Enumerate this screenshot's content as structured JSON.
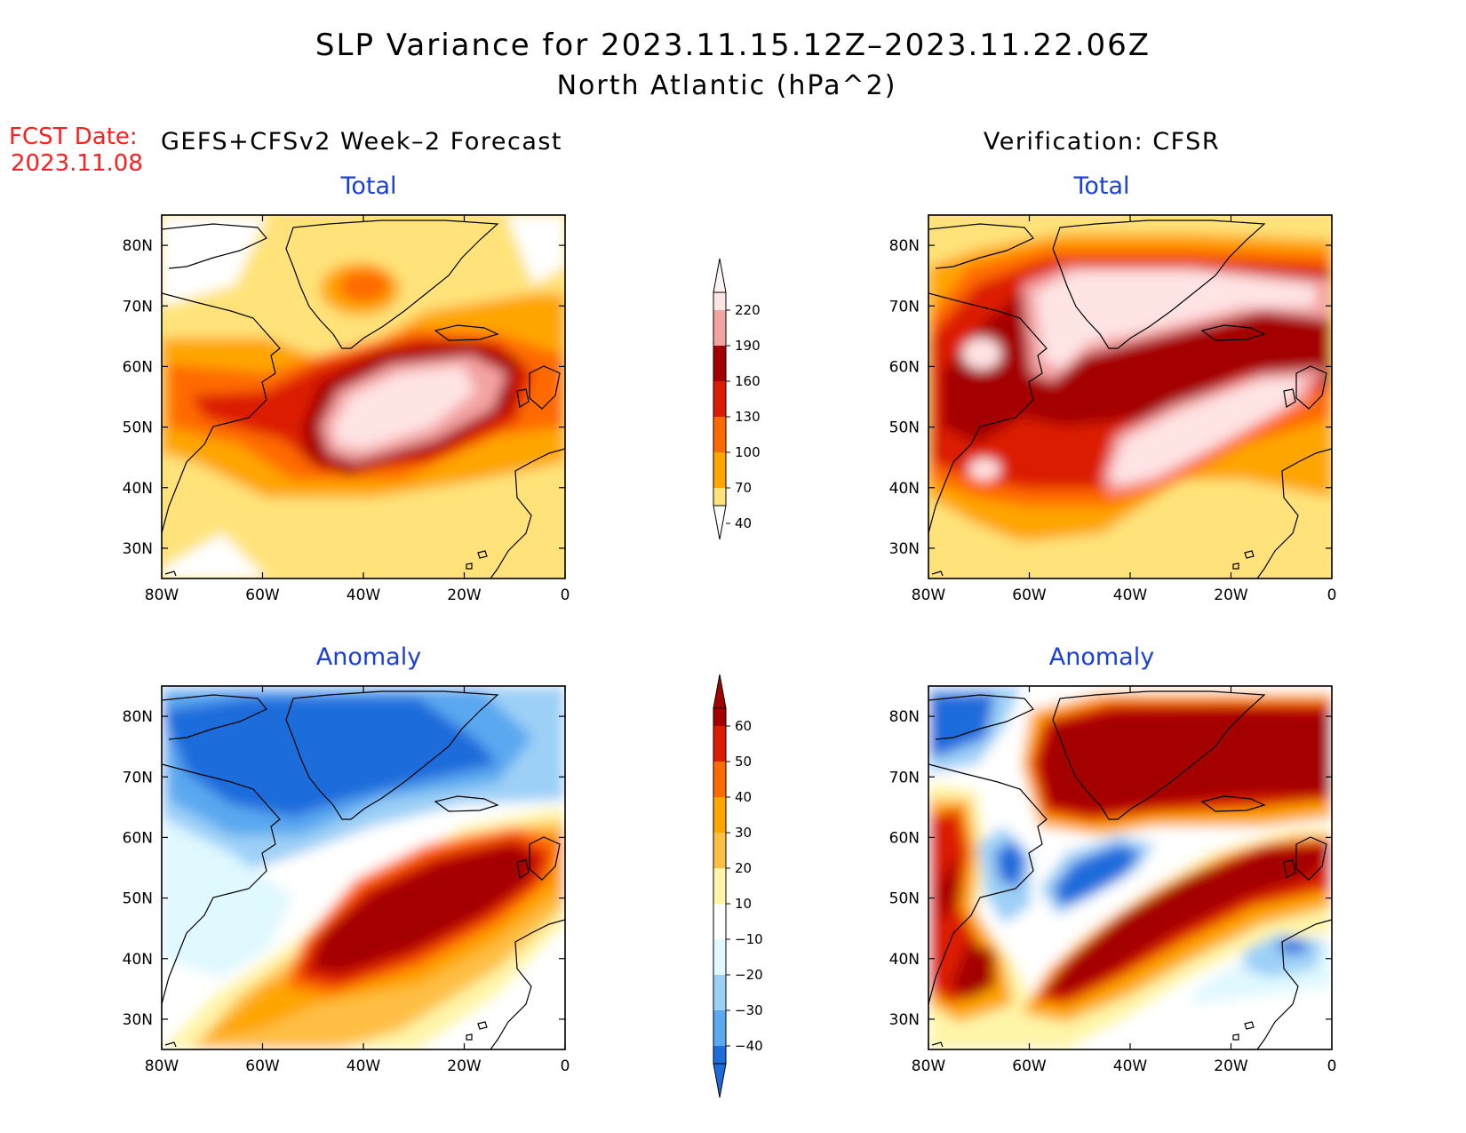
{
  "title": {
    "line1": "SLP Variance for 2023.11.15.12Z–2023.11.22.06Z",
    "line2": "North Atlantic (hPa^2)"
  },
  "fcst": {
    "label": "FCST Date:",
    "date": "2023.11.08"
  },
  "columns": {
    "left": "GEFS+CFSv2 Week–2 Forecast",
    "right": "Verification: CFSR"
  },
  "panels": [
    {
      "id": "forecast-total",
      "label": "Total",
      "field": "total"
    },
    {
      "id": "verification-total",
      "label": "Total",
      "field": "total"
    },
    {
      "id": "forecast-anomaly",
      "label": "Anomaly",
      "field": "anomaly"
    },
    {
      "id": "verification-anomaly",
      "label": "Anomaly",
      "field": "anomaly"
    }
  ],
  "axes": {
    "lon_ticks": [
      "80W",
      "60W",
      "40W",
      "20W",
      "0"
    ],
    "lat_ticks": [
      "80N",
      "70N",
      "60N",
      "50N",
      "40N",
      "30N"
    ],
    "lon_range": [
      -80,
      0
    ],
    "lat_range": [
      25,
      85
    ]
  },
  "colorbars": {
    "total": {
      "levels": [
        "220",
        "190",
        "160",
        "130",
        "100",
        "70",
        "40"
      ],
      "colors": [
        "#ffe4e4",
        "#f4a3a3",
        "#a50000",
        "#dc1b00",
        "#ff6a00",
        "#ffa500",
        "#ffe37a"
      ],
      "top_color": "#fff2f2",
      "bottom_color": "#ffffff"
    },
    "anomaly": {
      "levels": [
        "60",
        "50",
        "40",
        "30",
        "20",
        "10",
        "−10",
        "−20",
        "−30",
        "−40"
      ],
      "colors": [
        "#a50000",
        "#dc1b00",
        "#ff6a00",
        "#ffa500",
        "#ffbf45",
        "#fff5a8",
        "#ffffff",
        "#e0f8ff",
        "#9dd0f7",
        "#5aa8f0",
        "#1e6cdc"
      ],
      "top_color": "#a50000",
      "bottom_color": "#1e6cdc"
    }
  }
}
